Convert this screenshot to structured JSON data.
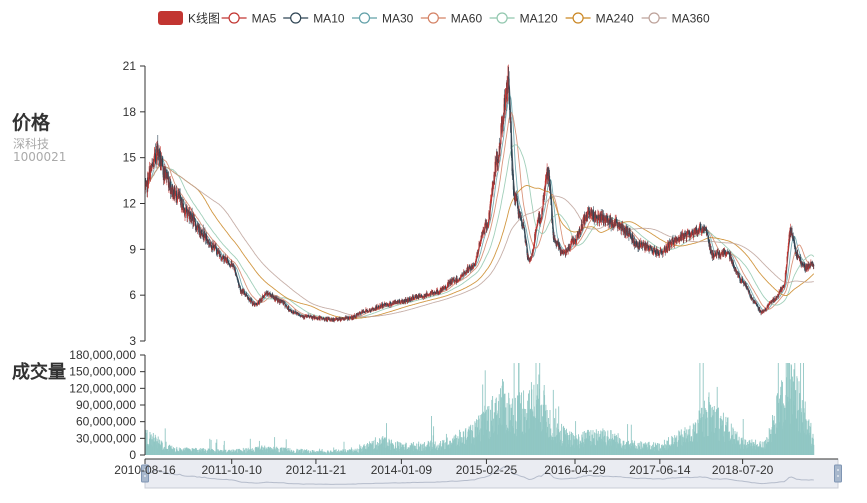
{
  "panel": {
    "price_title": "价格",
    "stock_name": "深科技",
    "stock_code": "1000021",
    "volume_title": "成交量"
  },
  "legend": [
    {
      "label": "K线图",
      "color": "#c23531",
      "kind": "candle"
    },
    {
      "label": "MA5",
      "color": "#c23531",
      "kind": "line"
    },
    {
      "label": "MA10",
      "color": "#2f4554",
      "kind": "line"
    },
    {
      "label": "MA30",
      "color": "#61a0a8",
      "kind": "line"
    },
    {
      "label": "MA60",
      "color": "#d48265",
      "kind": "line"
    },
    {
      "label": "MA120",
      "color": "#91c7ae",
      "kind": "line"
    },
    {
      "label": "MA240",
      "color": "#ca8622",
      "kind": "line"
    },
    {
      "label": "MA360",
      "color": "#bda29a",
      "kind": "line"
    }
  ],
  "chart_data": [
    {
      "type": "line",
      "title": "价格",
      "y_ticks": [
        "21",
        "18",
        "15",
        "12",
        "9",
        "6",
        "3"
      ],
      "ylim": [
        3,
        21
      ],
      "grid": false,
      "legend_position": "top",
      "x_ticks": [
        "2010-08-16",
        "2011-10-10",
        "2012-11-21",
        "2014-01-09",
        "2015-02-25",
        "2016-04-29",
        "2017-06-14",
        "2018-07-20"
      ],
      "price_path": [
        [
          "2010-08-16",
          12.8
        ],
        [
          "2010-09-15",
          14.2
        ],
        [
          "2010-10-15",
          15.5
        ],
        [
          "2010-11-15",
          14.0
        ],
        [
          "2011-01-10",
          12.6
        ],
        [
          "2011-03-10",
          11.4
        ],
        [
          "2011-05-10",
          10.2
        ],
        [
          "2011-07-10",
          9.2
        ],
        [
          "2011-09-01",
          8.4
        ],
        [
          "2011-10-10",
          8.0
        ],
        [
          "2011-12-01",
          6.2
        ],
        [
          "2012-02-01",
          5.4
        ],
        [
          "2012-04-01",
          6.1
        ],
        [
          "2012-06-01",
          5.6
        ],
        [
          "2012-08-01",
          4.9
        ],
        [
          "2012-10-01",
          4.6
        ],
        [
          "2012-11-21",
          4.5
        ],
        [
          "2013-02-01",
          4.4
        ],
        [
          "2013-05-01",
          4.5
        ],
        [
          "2013-08-01",
          5.0
        ],
        [
          "2013-11-01",
          5.4
        ],
        [
          "2014-01-09",
          5.6
        ],
        [
          "2014-04-01",
          5.9
        ],
        [
          "2014-07-01",
          6.2
        ],
        [
          "2014-10-01",
          7.0
        ],
        [
          "2014-12-15",
          7.8
        ],
        [
          "2015-02-25",
          10.5
        ],
        [
          "2015-04-15",
          14.5
        ],
        [
          "2015-05-25",
          18.5
        ],
        [
          "2015-06-10",
          19.5
        ],
        [
          "2015-07-10",
          12.5
        ],
        [
          "2015-08-20",
          10.5
        ],
        [
          "2015-09-20",
          8.2
        ],
        [
          "2015-11-10",
          11.0
        ],
        [
          "2015-12-20",
          14.0
        ],
        [
          "2016-01-20",
          9.5
        ],
        [
          "2016-03-01",
          8.8
        ],
        [
          "2016-04-29",
          9.6
        ],
        [
          "2016-07-01",
          11.4
        ],
        [
          "2016-09-01",
          11.0
        ],
        [
          "2016-11-01",
          10.8
        ],
        [
          "2017-01-01",
          10.2
        ],
        [
          "2017-03-01",
          9.3
        ],
        [
          "2017-06-14",
          8.8
        ],
        [
          "2017-09-01",
          9.6
        ],
        [
          "2017-11-01",
          10.0
        ],
        [
          "2018-01-15",
          10.4
        ],
        [
          "2018-03-01",
          8.6
        ],
        [
          "2018-05-01",
          8.8
        ],
        [
          "2018-07-20",
          6.9
        ],
        [
          "2018-09-15",
          5.6
        ],
        [
          "2018-10-20",
          4.9
        ],
        [
          "2018-12-20",
          5.7
        ],
        [
          "2019-02-01",
          6.5
        ],
        [
          "2019-03-10",
          10.2
        ],
        [
          "2019-04-10",
          8.6
        ],
        [
          "2019-05-20",
          7.8
        ],
        [
          "2019-07-01",
          8.1
        ]
      ]
    },
    {
      "type": "bar",
      "title": "成交量",
      "y_ticks": [
        "180,000,000",
        "150,000,000",
        "120,000,000",
        "90,000,000",
        "60,000,000",
        "30,000,000",
        "0"
      ],
      "ylim": [
        0,
        180000000
      ],
      "series": [
        {
          "name": "成交量",
          "color": "#91c7c4"
        }
      ],
      "volume_profile": [
        [
          "2010-08-16",
          40000000
        ],
        [
          "2011-01-01",
          12000000
        ],
        [
          "2011-10-10",
          8000000
        ],
        [
          "2012-03-01",
          14000000
        ],
        [
          "2012-11-21",
          7000000
        ],
        [
          "2013-06-01",
          9000000
        ],
        [
          "2013-10-01",
          30000000
        ],
        [
          "2014-01-09",
          18000000
        ],
        [
          "2014-08-01",
          22000000
        ],
        [
          "2015-01-01",
          50000000
        ],
        [
          "2015-05-15",
          110000000
        ],
        [
          "2015-07-01",
          90000000
        ],
        [
          "2015-11-15",
          120000000
        ],
        [
          "2016-01-15",
          55000000
        ],
        [
          "2016-04-29",
          30000000
        ],
        [
          "2016-09-01",
          45000000
        ],
        [
          "2017-02-01",
          22000000
        ],
        [
          "2017-06-14",
          18000000
        ],
        [
          "2017-12-01",
          50000000
        ],
        [
          "2018-02-01",
          95000000
        ],
        [
          "2018-07-20",
          25000000
        ],
        [
          "2018-11-01",
          20000000
        ],
        [
          "2019-03-10",
          160000000
        ],
        [
          "2019-07-01",
          30000000
        ]
      ]
    }
  ],
  "colors": {
    "up": "#c23531",
    "down": "#2f4554",
    "volume": "#91c7c4",
    "axis": "#333333"
  }
}
